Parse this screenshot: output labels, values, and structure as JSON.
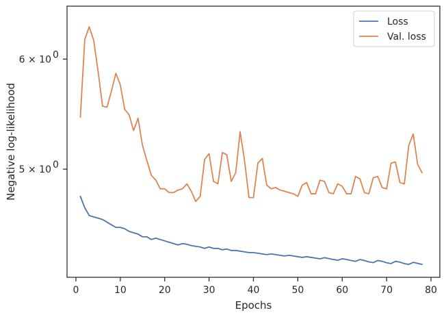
{
  "chart_data": {
    "type": "line",
    "xlabel": "Epochs",
    "ylabel": "Negative log-likelihood",
    "y_scale": "log",
    "xlim": [
      -2,
      82
    ],
    "ylim": [
      4.18,
      6.55
    ],
    "x_ticks": [
      0,
      10,
      20,
      30,
      40,
      50,
      60,
      70,
      80
    ],
    "x_tick_labels": [
      "0",
      "10",
      "20",
      "30",
      "40",
      "50",
      "60",
      "70",
      "80"
    ],
    "y_ticks": [
      6,
      5
    ],
    "y_tick_base": "5 × 10",
    "y_tick_labels": [
      "6 × 10",
      "5 × 10"
    ],
    "y_tick_exponent": "0",
    "grid": false,
    "legend_position": "upper-right",
    "x": [
      1,
      2,
      3,
      4,
      5,
      6,
      7,
      8,
      9,
      10,
      11,
      12,
      13,
      14,
      15,
      16,
      17,
      18,
      19,
      20,
      21,
      22,
      23,
      24,
      25,
      26,
      27,
      28,
      29,
      30,
      31,
      32,
      33,
      34,
      35,
      36,
      37,
      38,
      39,
      40,
      41,
      42,
      43,
      44,
      45,
      46,
      47,
      48,
      49,
      50,
      51,
      52,
      53,
      54,
      55,
      56,
      57,
      58,
      59,
      60,
      61,
      62,
      63,
      64,
      65,
      66,
      67,
      68,
      69,
      70,
      71,
      72,
      73,
      74,
      75,
      76,
      77,
      78
    ],
    "series": [
      {
        "name": "Loss",
        "color": "#4c72b0",
        "values": [
          4.78,
          4.69,
          4.63,
          4.62,
          4.61,
          4.6,
          4.58,
          4.56,
          4.54,
          4.54,
          4.53,
          4.51,
          4.5,
          4.49,
          4.47,
          4.47,
          4.45,
          4.46,
          4.45,
          4.44,
          4.43,
          4.42,
          4.41,
          4.42,
          4.415,
          4.405,
          4.4,
          4.395,
          4.385,
          4.395,
          4.385,
          4.385,
          4.375,
          4.38,
          4.37,
          4.37,
          4.365,
          4.36,
          4.355,
          4.355,
          4.35,
          4.345,
          4.34,
          4.345,
          4.34,
          4.335,
          4.33,
          4.335,
          4.33,
          4.325,
          4.32,
          4.325,
          4.32,
          4.315,
          4.31,
          4.318,
          4.312,
          4.305,
          4.3,
          4.31,
          4.305,
          4.298,
          4.292,
          4.305,
          4.298,
          4.288,
          4.283,
          4.298,
          4.292,
          4.282,
          4.276,
          4.292,
          4.286,
          4.276,
          4.27,
          4.285,
          4.278,
          4.27
        ]
      },
      {
        "name": "Val. loss",
        "color": "#dd8452",
        "values": [
          5.45,
          6.2,
          6.33,
          6.19,
          5.88,
          5.55,
          5.54,
          5.69,
          5.86,
          5.75,
          5.52,
          5.47,
          5.33,
          5.44,
          5.2,
          5.07,
          4.95,
          4.91,
          4.84,
          4.84,
          4.81,
          4.81,
          4.83,
          4.84,
          4.88,
          4.82,
          4.74,
          4.78,
          5.08,
          5.13,
          4.9,
          4.88,
          5.14,
          5.12,
          4.9,
          4.97,
          5.32,
          5.07,
          4.77,
          4.77,
          5.05,
          5.09,
          4.87,
          4.84,
          4.85,
          4.83,
          4.82,
          4.81,
          4.8,
          4.78,
          4.87,
          4.89,
          4.8,
          4.8,
          4.91,
          4.9,
          4.81,
          4.8,
          4.88,
          4.86,
          4.8,
          4.8,
          4.94,
          4.92,
          4.81,
          4.8,
          4.93,
          4.94,
          4.85,
          4.84,
          5.05,
          5.06,
          4.89,
          4.88,
          5.2,
          5.3,
          5.04,
          4.97
        ]
      }
    ]
  }
}
